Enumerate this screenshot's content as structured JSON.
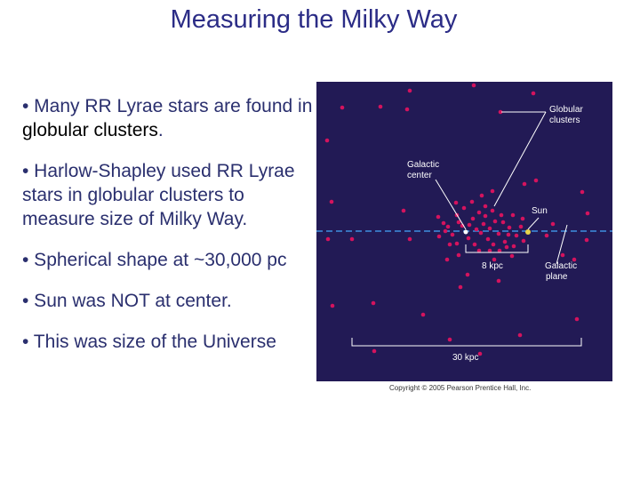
{
  "slide": {
    "title": "Measuring the Milky Way",
    "bullets": [
      {
        "pre": "• Many RR Lyrae stars are found in ",
        "em": "globular clusters",
        "post": "."
      },
      {
        "pre": "• Harlow-Shapley used RR Lyrae stars in globular clusters to measure size of Milky Way.",
        "em": "",
        "post": ""
      },
      {
        "pre": "• Spherical shape at ~30,000 pc",
        "em": "",
        "post": ""
      },
      {
        "pre": "• Sun was NOT at center.",
        "em": "",
        "post": ""
      },
      {
        "pre": "• This was size of the Universe",
        "em": "",
        "post": ""
      }
    ]
  },
  "figure": {
    "labels": {
      "globular": [
        "Globular",
        "clusters"
      ],
      "center": [
        "Galactic",
        "center"
      ],
      "sun": "Sun",
      "kpc8": "8 kpc",
      "plane": [
        "Galactic",
        "plane"
      ],
      "kpc30": "30 kpc"
    },
    "copyright": "Copyright © 2005 Pearson Prentice Hall, Inc.",
    "colors": {
      "background": "#221a55",
      "cluster": "#d4135e",
      "sun": "#e6d44a",
      "plane": "#3e8fe0",
      "label": "#ffffff"
    }
  }
}
